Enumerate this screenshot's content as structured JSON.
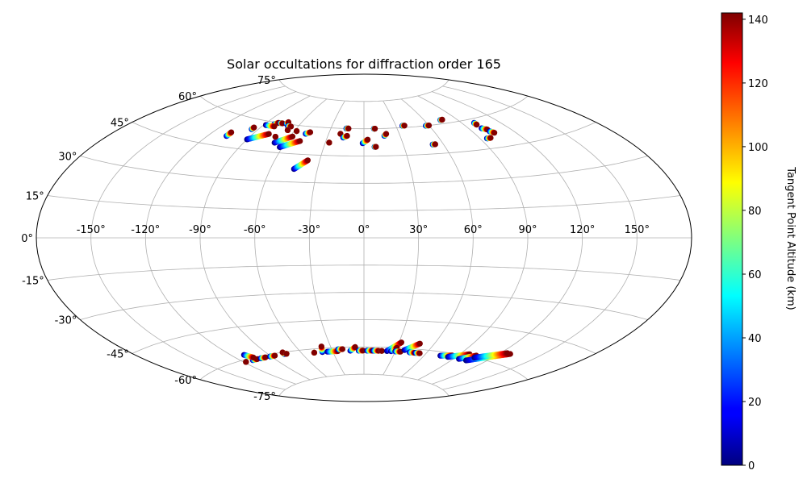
{
  "chart_data": {
    "type": "scatter",
    "projection": "aitoff",
    "title": "Solar occultations for diffraction order 165",
    "xlabel": "",
    "ylabel": "",
    "grid": true,
    "longitude_ticks": [
      -150,
      -120,
      -90,
      -60,
      -30,
      0,
      30,
      60,
      90,
      120,
      150
    ],
    "longitude_tick_labels": [
      "-150°",
      "-120°",
      "-90°",
      "-60°",
      "-30°",
      "0°",
      "30°",
      "60°",
      "90°",
      "120°",
      "150°"
    ],
    "latitude_ticks": [
      75,
      60,
      45,
      30,
      15,
      0,
      -15,
      -30,
      -45,
      -60,
      -75
    ],
    "latitude_tick_labels": [
      "75°",
      "60°",
      "45°",
      "30°",
      "15°",
      "0°",
      "-15°",
      "-30°",
      "-45°",
      "-60°",
      "-75°"
    ],
    "colorbar": {
      "label": "Tangent Point Altitude (km)",
      "colormap": "jet",
      "range": [
        0,
        142
      ],
      "ticks": [
        0,
        20,
        40,
        60,
        80,
        100,
        120,
        140
      ],
      "tick_labels": [
        "0",
        "20",
        "40",
        "60",
        "80",
        "100",
        "120",
        "140"
      ]
    },
    "occultation_tracks": [
      {
        "start": [
          -107,
          50
        ],
        "end": [
          -107,
          52
        ]
      },
      {
        "start": [
          -95,
          55
        ],
        "end": [
          -95,
          56
        ]
      },
      {
        "start": [
          -88,
          58
        ],
        "end": [
          -88,
          58
        ]
      },
      {
        "start": [
          -82,
          59
        ],
        "end": [
          -80,
          60
        ]
      },
      {
        "start": [
          -78,
          60
        ],
        "end": [
          -76,
          60
        ]
      },
      {
        "start": [
          -72,
          60
        ],
        "end": [
          -72,
          61
        ]
      },
      {
        "start": [
          -69,
          59
        ],
        "end": [
          -66,
          59
        ]
      },
      {
        "start": [
          -66,
          57
        ],
        "end": [
          -66,
          57
        ]
      },
      {
        "start": [
          -58,
          57
        ],
        "end": [
          -58,
          57
        ]
      },
      {
        "start": [
          -88,
          58
        ],
        "end": [
          -80,
          58
        ]
      },
      {
        "start": [
          -90,
          50
        ],
        "end": [
          -78,
          54
        ]
      },
      {
        "start": [
          -68,
          50
        ],
        "end": [
          -58,
          54
        ]
      },
      {
        "start": [
          -62,
          48
        ],
        "end": [
          -50,
          52
        ]
      },
      {
        "start": [
          -71,
          53
        ],
        "end": [
          -71,
          53
        ]
      },
      {
        "start": [
          -49,
          56
        ],
        "end": [
          -46,
          57
        ]
      },
      {
        "start": [
          -45,
          37
        ],
        "end": [
          -38,
          42
        ]
      },
      {
        "start": [
          -27,
          52
        ],
        "end": [
          -27,
          52
        ]
      },
      {
        "start": [
          -20,
          57
        ],
        "end": [
          -20,
          57
        ]
      },
      {
        "start": [
          -17,
          55
        ],
        "end": [
          -14,
          56
        ]
      },
      {
        "start": [
          -16,
          60
        ],
        "end": [
          -14,
          60
        ]
      },
      {
        "start": [
          -1,
          52
        ],
        "end": [
          3,
          54
        ]
      },
      {
        "start": [
          8,
          50
        ],
        "end": [
          9,
          50
        ]
      },
      {
        "start": [
          9,
          60
        ],
        "end": [
          10,
          60
        ]
      },
      {
        "start": [
          17,
          56
        ],
        "end": [
          19,
          57
        ]
      },
      {
        "start": [
          36,
          61
        ],
        "end": [
          38,
          61
        ]
      },
      {
        "start": [
          52,
          50
        ],
        "end": [
          54,
          50
        ]
      },
      {
        "start": [
          57,
          60
        ],
        "end": [
          60,
          60
        ]
      },
      {
        "start": [
          75,
          62
        ],
        "end": [
          77,
          62
        ]
      },
      {
        "start": [
          95,
          50
        ],
        "end": [
          98,
          50
        ]
      },
      {
        "start": [
          100,
          58
        ],
        "end": [
          100,
          57
        ]
      },
      {
        "start": [
          100,
          55
        ],
        "end": [
          103,
          54
        ]
      },
      {
        "start": [
          103,
          53
        ],
        "end": [
          105,
          52
        ]
      },
      {
        "start": [
          -118,
          -61
        ],
        "end": [
          -118,
          -61
        ]
      },
      {
        "start": [
          -110,
          -61
        ],
        "end": [
          -105,
          -61
        ]
      },
      {
        "start": [
          -110,
          -58
        ],
        "end": [
          -106,
          -60
        ]
      },
      {
        "start": [
          -101,
          -61
        ],
        "end": [
          -96,
          -61
        ]
      },
      {
        "start": [
          -91,
          -61
        ],
        "end": [
          -86,
          -61
        ]
      },
      {
        "start": [
          -76,
          -61
        ],
        "end": [
          -76,
          -60
        ]
      },
      {
        "start": [
          -74,
          -61
        ],
        "end": [
          -74,
          -61
        ]
      },
      {
        "start": [
          -48,
          -62
        ],
        "end": [
          -48,
          -62
        ]
      },
      {
        "start": [
          -40,
          -62
        ],
        "end": [
          -38,
          -59
        ]
      },
      {
        "start": [
          -35,
          -62
        ],
        "end": [
          -25,
          -62
        ]
      },
      {
        "start": [
          -24,
          -61
        ],
        "end": [
          -20,
          -61
        ]
      },
      {
        "start": [
          -13,
          -62
        ],
        "end": [
          -8,
          -60
        ]
      },
      {
        "start": [
          -5,
          -62
        ],
        "end": [
          -1,
          -62
        ]
      },
      {
        "start": [
          3,
          -62
        ],
        "end": [
          8,
          -62
        ]
      },
      {
        "start": [
          9,
          -62
        ],
        "end": [
          14,
          -62
        ]
      },
      {
        "start": [
          17,
          -62
        ],
        "end": [
          17,
          -62
        ]
      },
      {
        "start": [
          22,
          -62
        ],
        "end": [
          32,
          -57
        ]
      },
      {
        "start": [
          26,
          -62
        ],
        "end": [
          30,
          -60
        ]
      },
      {
        "start": [
          30,
          -62
        ],
        "end": [
          35,
          -62
        ]
      },
      {
        "start": [
          38,
          -61
        ],
        "end": [
          48,
          -57
        ]
      },
      {
        "start": [
          44,
          -62
        ],
        "end": [
          49,
          -62
        ]
      },
      {
        "start": [
          50,
          -62
        ],
        "end": [
          54,
          -62
        ]
      },
      {
        "start": [
          75,
          -62
        ],
        "end": [
          85,
          -61
        ]
      },
      {
        "start": [
          83,
          -62
        ],
        "end": [
          98,
          -59
        ]
      },
      {
        "start": [
          95,
          -62
        ],
        "end": [
          105,
          -59
        ]
      },
      {
        "start": [
          103,
          -62
        ],
        "end": [
          128,
          -55
        ]
      },
      {
        "start": [
          106,
          -60
        ],
        "end": [
          125,
          -55
        ]
      }
    ]
  }
}
